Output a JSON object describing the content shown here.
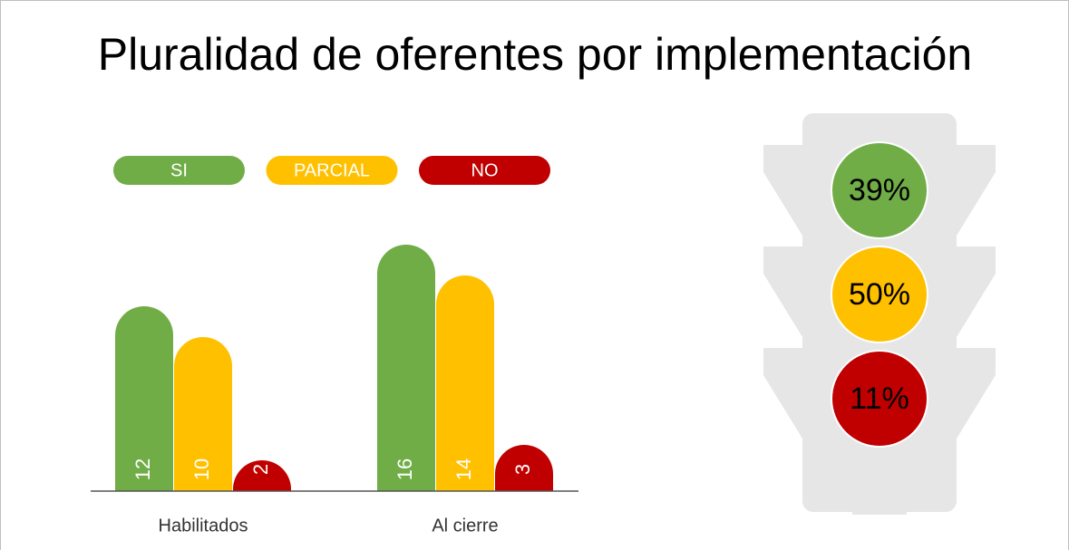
{
  "chart_data": [
    {
      "type": "bar",
      "title": "Pluralidad de oferentes por implementación",
      "categories": [
        "Habilitados",
        "Al cierre"
      ],
      "series": [
        {
          "name": "SI",
          "color": "#70ad47",
          "values": [
            12,
            16
          ]
        },
        {
          "name": "PARCIAL",
          "color": "#ffc000",
          "values": [
            10,
            14
          ]
        },
        {
          "name": "NO",
          "color": "#c00000",
          "values": [
            2,
            3
          ]
        }
      ]
    },
    {
      "type": "semaphore",
      "values": [
        39,
        50,
        11
      ],
      "value_labels": [
        "39%",
        "50%",
        "11%"
      ],
      "colors": [
        "#70ad47",
        "#ffc000",
        "#c00000"
      ]
    }
  ]
}
